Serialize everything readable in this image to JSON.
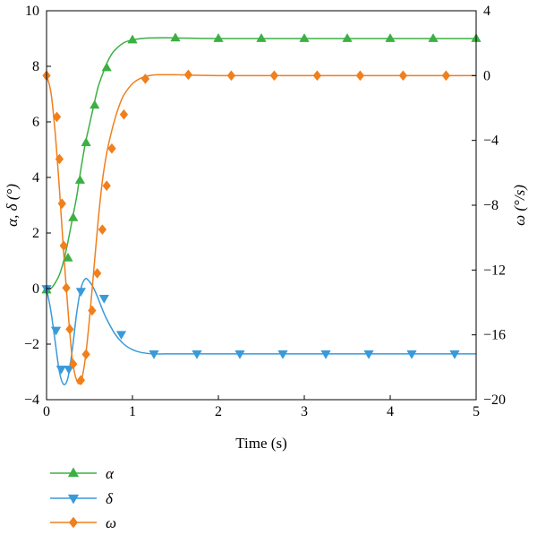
{
  "chart_data": {
    "type": "line",
    "title": "",
    "xlabel": "Time (s)",
    "ylabel_left": "α, δ (°)",
    "ylabel_right": "ω (°/s)",
    "xlim": [
      0,
      5
    ],
    "ylim_left": [
      -4,
      10
    ],
    "ylim_right": [
      -20,
      4
    ],
    "x_ticks": [
      "0",
      "1",
      "2",
      "3",
      "4",
      "5"
    ],
    "y_left_ticks": [
      "−4",
      "−2",
      "0",
      "2",
      "4",
      "6",
      "8",
      "10"
    ],
    "y_right_ticks": [
      "−20",
      "−16",
      "−12",
      "−8",
      "−4",
      "0",
      "4"
    ],
    "grid": false,
    "legend_position": "below plot, left",
    "series": [
      {
        "name": "α",
        "axis": "left",
        "color": "#3cb043",
        "marker": "triangle-up",
        "curve_x": [
          0,
          0.05,
          0.1,
          0.15,
          0.2,
          0.25,
          0.3,
          0.35,
          0.4,
          0.45,
          0.5,
          0.55,
          0.6,
          0.65,
          0.7,
          0.75,
          0.8,
          0.9,
          1.0,
          1.1,
          1.2,
          1.35,
          1.5,
          2.0,
          3.0,
          4.0,
          5.0
        ],
        "curve_y": [
          -0.05,
          0.0,
          0.2,
          0.5,
          1.0,
          1.7,
          2.5,
          3.3,
          4.3,
          5.2,
          5.9,
          6.6,
          7.25,
          7.7,
          8.1,
          8.4,
          8.6,
          8.85,
          8.95,
          9.0,
          9.02,
          9.03,
          9.02,
          9.0,
          9.0,
          9.0,
          9.0
        ],
        "marker_x": [
          0,
          0.25,
          0.31,
          0.39,
          0.46,
          0.56,
          0.7,
          1.0,
          1.5,
          2.0,
          2.5,
          3.0,
          3.5,
          4.0,
          4.5,
          5.0
        ],
        "marker_y": [
          -0.05,
          1.1,
          2.55,
          3.9,
          5.25,
          6.6,
          7.95,
          8.95,
          9.02,
          9.0,
          9.0,
          9.0,
          9.0,
          9.0,
          9.0,
          9.0
        ]
      },
      {
        "name": "δ",
        "axis": "left",
        "color": "#3a9ad9",
        "marker": "triangle-down",
        "curve_x": [
          0,
          0.05,
          0.1,
          0.15,
          0.2,
          0.25,
          0.3,
          0.35,
          0.4,
          0.45,
          0.5,
          0.55,
          0.6,
          0.65,
          0.7,
          0.8,
          0.9,
          1.0,
          1.1,
          1.25,
          1.5,
          2.0,
          3.0,
          4.0,
          5.0
        ],
        "curve_y": [
          0.0,
          -0.8,
          -1.9,
          -3.0,
          -3.45,
          -3.2,
          -2.2,
          -0.9,
          0.0,
          0.35,
          0.25,
          0.0,
          -0.35,
          -0.75,
          -1.1,
          -1.65,
          -2.0,
          -2.2,
          -2.3,
          -2.35,
          -2.35,
          -2.35,
          -2.35,
          -2.35,
          -2.35
        ],
        "marker_x": [
          0,
          0.11,
          0.17,
          0.26,
          0.4,
          0.67,
          0.87,
          1.25,
          1.75,
          2.25,
          2.75,
          3.25,
          3.75,
          4.25,
          4.75
        ],
        "marker_y": [
          0.0,
          -1.5,
          -2.9,
          -2.9,
          -0.1,
          -0.35,
          -1.65,
          -2.35,
          -2.35,
          -2.35,
          -2.35,
          -2.35,
          -2.35,
          -2.35,
          -2.35
        ]
      },
      {
        "name": "ω",
        "axis": "right",
        "color": "#f07f1c",
        "marker": "diamond",
        "curve_x": [
          0,
          0.05,
          0.1,
          0.15,
          0.2,
          0.25,
          0.3,
          0.35,
          0.4,
          0.45,
          0.5,
          0.55,
          0.6,
          0.65,
          0.7,
          0.75,
          0.8,
          0.85,
          0.9,
          1.0,
          1.1,
          1.2,
          1.3,
          1.5,
          2.0,
          3.0,
          4.0,
          5.0
        ],
        "curve_y": [
          0.0,
          -1.0,
          -3.5,
          -7.0,
          -11.0,
          -14.5,
          -17.5,
          -18.8,
          -18.9,
          -17.5,
          -15.0,
          -12.0,
          -9.0,
          -6.5,
          -4.8,
          -3.6,
          -2.6,
          -1.8,
          -1.2,
          -0.5,
          -0.15,
          0.0,
          0.05,
          0.05,
          0.0,
          0.0,
          0.0,
          0.0
        ],
        "marker_x": [
          0,
          0.12,
          0.15,
          0.18,
          0.2,
          0.23,
          0.27,
          0.31,
          0.4,
          0.46,
          0.53,
          0.59,
          0.65,
          0.7,
          0.76,
          0.9,
          1.15,
          1.65,
          2.15,
          2.65,
          3.15,
          3.65,
          4.15,
          4.65
        ],
        "marker_y": [
          0.0,
          -2.55,
          -5.15,
          -7.9,
          -10.5,
          -13.1,
          -15.65,
          -17.8,
          -18.8,
          -17.2,
          -14.5,
          -12.2,
          -9.5,
          -6.8,
          -4.5,
          -2.4,
          -0.2,
          0.05,
          0.0,
          0.0,
          0.0,
          0.0,
          0.0,
          0.0
        ]
      }
    ]
  }
}
